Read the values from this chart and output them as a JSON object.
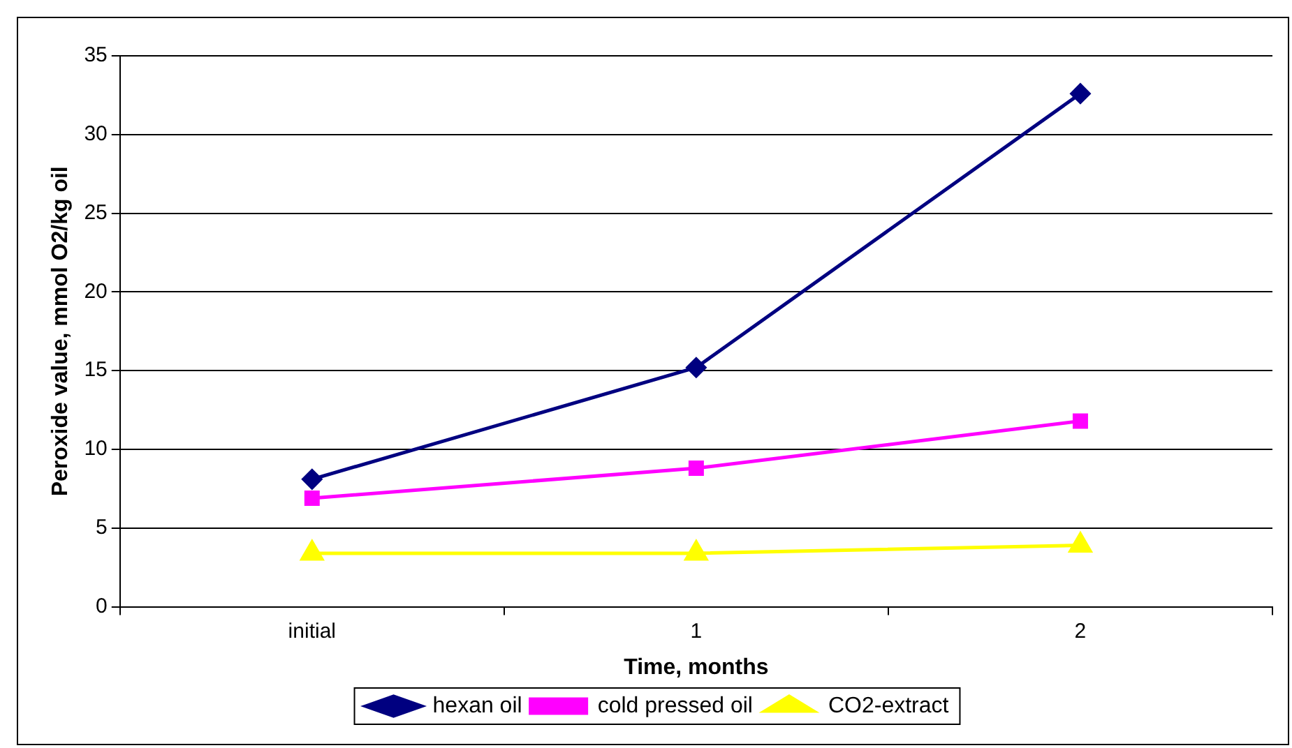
{
  "chart_data": {
    "type": "line",
    "xlabel": "Time, months",
    "ylabel": "Peroxide value, mmol O2/kg oil",
    "categories": [
      "initial",
      "1",
      "2"
    ],
    "series": [
      {
        "name": "hexan oil",
        "color": "#000080",
        "marker": "diamond",
        "values": [
          8.1,
          15.2,
          32.6
        ]
      },
      {
        "name": "cold pressed oil",
        "color": "#ff00ff",
        "marker": "square",
        "values": [
          6.9,
          8.8,
          11.8
        ]
      },
      {
        "name": "CO2-extract",
        "color": "#ffff00",
        "marker": "triangle",
        "values": [
          3.4,
          3.4,
          3.9
        ]
      }
    ],
    "ylim": [
      0,
      35
    ],
    "yticks": [
      0,
      5,
      10,
      15,
      20,
      25,
      30,
      35
    ],
    "grid": "y",
    "legend": "bottom",
    "line_style": "solid"
  }
}
